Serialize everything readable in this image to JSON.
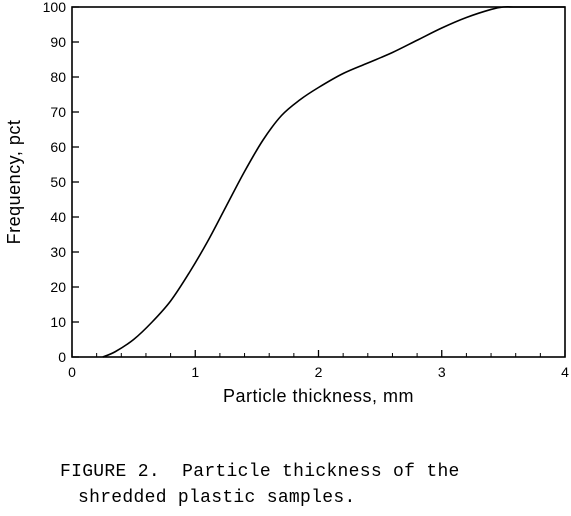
{
  "chart_data": {
    "type": "line",
    "title": "",
    "xlabel": "Particle thickness, mm",
    "ylabel": "Frequency, pct",
    "xlim": [
      0,
      4
    ],
    "ylim": [
      0,
      100
    ],
    "x_ticks": [
      0,
      1,
      2,
      3,
      4
    ],
    "y_ticks": [
      0,
      10,
      20,
      30,
      40,
      50,
      60,
      70,
      80,
      90,
      100
    ],
    "grid": false,
    "legend": "none",
    "series": [
      {
        "x": [
          0.25,
          0.35,
          0.5,
          0.65,
          0.8,
          0.95,
          1.1,
          1.25,
          1.4,
          1.55,
          1.7,
          1.85,
          2.0,
          2.2,
          2.4,
          2.6,
          2.8,
          3.0,
          3.2,
          3.4,
          3.5,
          3.6,
          3.8,
          4.0
        ],
        "y": [
          0,
          1.5,
          5,
          10,
          16,
          24,
          33,
          43,
          53,
          62,
          69,
          73.5,
          77,
          81,
          84,
          87,
          90.5,
          94,
          97,
          99.3,
          100,
          100,
          100,
          100
        ]
      }
    ]
  },
  "caption": {
    "line1": "FIGURE 2.  Particle thickness of the",
    "line2": "shredded plastic samples."
  }
}
